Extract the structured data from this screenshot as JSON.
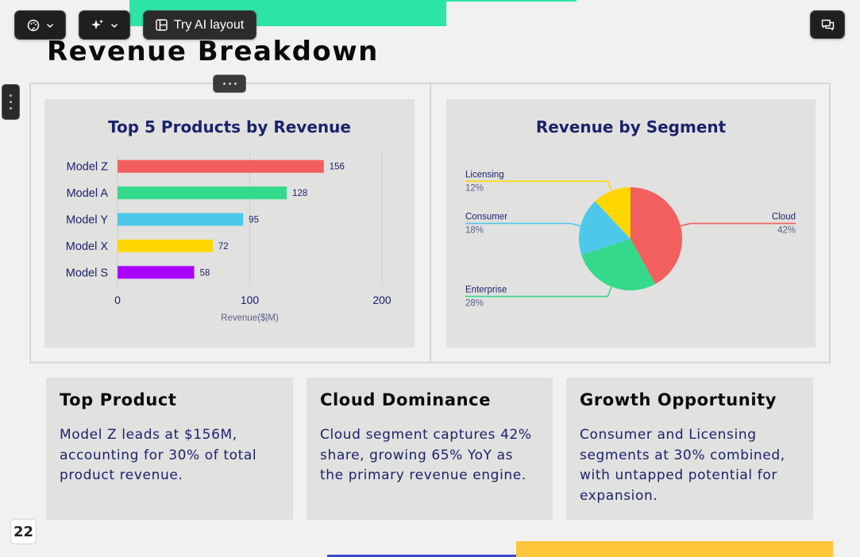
{
  "toolbar": {
    "ai_layout_label": "Try AI layout"
  },
  "page": {
    "title": "Revenue Breakdown",
    "page_number": "22"
  },
  "chart_data": [
    {
      "type": "bar",
      "orientation": "horizontal",
      "title": "Top 5 Products by Revenue",
      "categories": [
        "Model Z",
        "Model A",
        "Model Y",
        "Model X",
        "Model S"
      ],
      "values": [
        156,
        128,
        95,
        72,
        58
      ],
      "value_labels": [
        "156",
        "128",
        "95",
        "72",
        "58"
      ],
      "colors": [
        "#f25f5f",
        "#34d98a",
        "#4ec8ea",
        "#fed600",
        "#aa00ff"
      ],
      "xlabel": "Revenue($|M)",
      "ylabel": "",
      "xlim": [
        0,
        200
      ],
      "xticks": [
        0,
        100,
        200
      ],
      "xtick_labels": [
        "0",
        "100",
        "200"
      ],
      "grid": true
    },
    {
      "type": "pie",
      "title": "Revenue by Segment",
      "slices": [
        {
          "label": "Cloud",
          "value": 42,
          "pct_label": "42%",
          "color": "#f25f5f"
        },
        {
          "label": "Enterprise",
          "value": 28,
          "pct_label": "28%",
          "color": "#34d98a"
        },
        {
          "label": "Consumer",
          "value": 18,
          "pct_label": "18%",
          "color": "#4ec8ea"
        },
        {
          "label": "Licensing",
          "value": 12,
          "pct_label": "12%",
          "color": "#fed600"
        }
      ]
    }
  ],
  "cards": [
    {
      "title": "Top Product",
      "body": "Model Z leads at $156M, accounting for 30% of total product revenue."
    },
    {
      "title": "Cloud Dominance",
      "body": "Cloud segment captures 42% share, growing 65% YoY as the primary revenue engine."
    },
    {
      "title": "Growth Opportunity",
      "body": "Consumer and Licensing segments at 30% combined, with untapped potential for expansion."
    }
  ],
  "colors": {
    "title_text": "#1b236b",
    "accent_green": "#2ee5a8",
    "accent_yellow": "#fdc63b"
  },
  "icons": {
    "theme": "palette-icon",
    "magic": "sparkles-icon",
    "ai_layout": "layout-icon",
    "chat": "chat-icon"
  }
}
